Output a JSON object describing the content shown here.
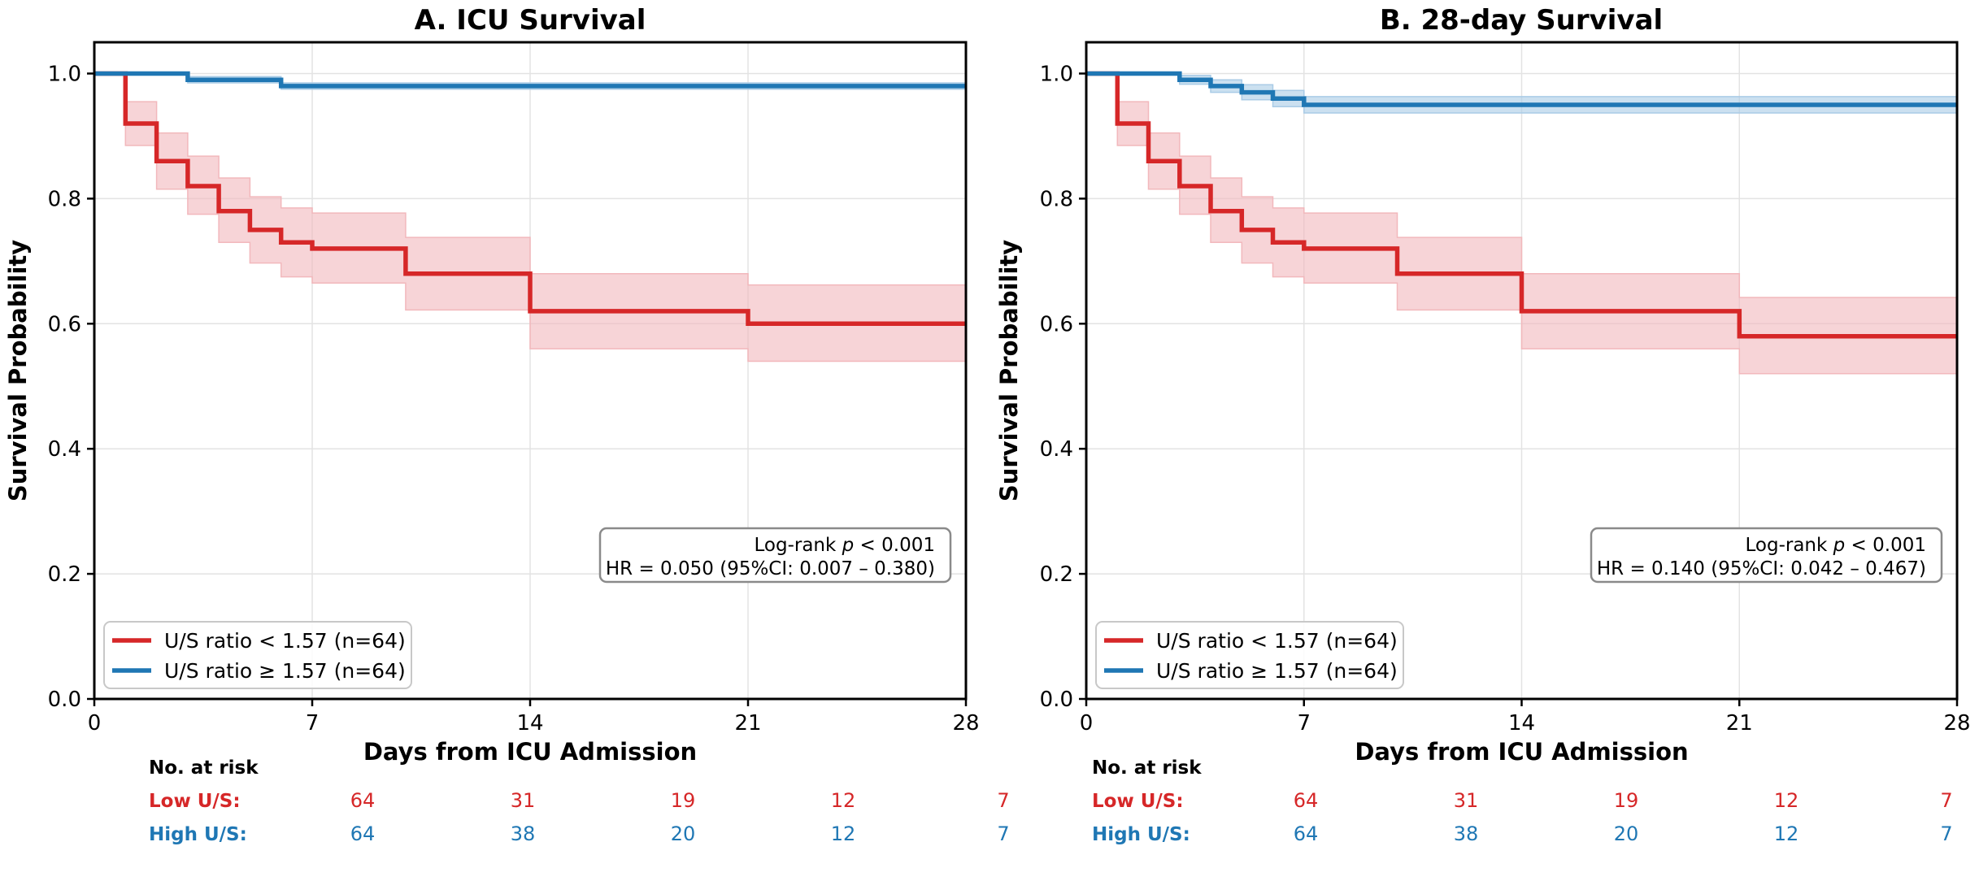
{
  "colors": {
    "low": "#d62728",
    "high": "#1f77b4",
    "low_ci": "#f2b8bc",
    "high_ci": "#a9cbe6",
    "grid": "#e3e3e3",
    "axis": "#000000"
  },
  "chart_data": [
    {
      "type": "line",
      "subtype": "kaplan-meier",
      "title": "A. ICU Survival",
      "xlabel": "Days from ICU Admission",
      "ylabel": "Survival Probability",
      "xlim": [
        0,
        28
      ],
      "ylim": [
        0,
        1.05
      ],
      "xticks": [
        0,
        7,
        14,
        21,
        28
      ],
      "yticks": [
        0.0,
        0.2,
        0.4,
        0.6,
        0.8,
        1.0
      ],
      "xtick_labels": [
        "0",
        "7",
        "14",
        "21",
        "28"
      ],
      "ytick_labels": [
        "0.0",
        "0.2",
        "0.4",
        "0.6",
        "0.8",
        "1.0"
      ],
      "grid": true,
      "legend_position": "bottom-left",
      "annotation": {
        "line1_prefix": "Log-rank ",
        "line1_p": "p",
        "line1_suffix": " < 0.001",
        "line2": "HR = 0.050 (95%CI: 0.007 – 0.380)"
      },
      "series": [
        {
          "name": "U/S ratio < 1.57 (n=64)",
          "key": "low",
          "x": [
            0,
            1,
            2,
            3,
            4,
            5,
            6,
            7,
            10,
            14,
            21,
            28
          ],
          "y": [
            1.0,
            0.92,
            0.86,
            0.82,
            0.78,
            0.75,
            0.73,
            0.72,
            0.68,
            0.62,
            0.6,
            0.6
          ],
          "ci_lower": [
            1.0,
            0.885,
            0.815,
            0.775,
            0.73,
            0.697,
            0.675,
            0.665,
            0.622,
            0.56,
            0.54,
            0.54
          ],
          "ci_upper": [
            1.0,
            0.955,
            0.905,
            0.868,
            0.833,
            0.803,
            0.785,
            0.777,
            0.738,
            0.68,
            0.662,
            0.662
          ]
        },
        {
          "name": "U/S ratio ≥ 1.57 (n=64)",
          "key": "high",
          "x": [
            0,
            3,
            6,
            28
          ],
          "y": [
            1.0,
            0.99,
            0.98,
            0.98
          ],
          "ci_lower": [
            1.0,
            0.985,
            0.975,
            0.975
          ],
          "ci_upper": [
            1.0,
            0.995,
            0.985,
            0.985
          ]
        }
      ],
      "risk_table": {
        "header": "No. at risk",
        "rows": [
          {
            "label": "Low U/S:",
            "key": "low",
            "values": [
              "64",
              "31",
              "19",
              "12",
              "7"
            ]
          },
          {
            "label": "High U/S:",
            "key": "high",
            "values": [
              "64",
              "38",
              "20",
              "12",
              "7"
            ]
          }
        ]
      }
    },
    {
      "type": "line",
      "subtype": "kaplan-meier",
      "title": "B. 28-day Survival",
      "xlabel": "Days from ICU Admission",
      "ylabel": "Survival Probability",
      "xlim": [
        0,
        28
      ],
      "ylim": [
        0,
        1.05
      ],
      "xticks": [
        0,
        7,
        14,
        21,
        28
      ],
      "yticks": [
        0.0,
        0.2,
        0.4,
        0.6,
        0.8,
        1.0
      ],
      "xtick_labels": [
        "0",
        "7",
        "14",
        "21",
        "28"
      ],
      "ytick_labels": [
        "0.0",
        "0.2",
        "0.4",
        "0.6",
        "0.8",
        "1.0"
      ],
      "grid": true,
      "legend_position": "bottom-left",
      "annotation": {
        "line1_prefix": "Log-rank ",
        "line1_p": "p",
        "line1_suffix": " < 0.001",
        "line2": "HR = 0.140 (95%CI: 0.042 – 0.467)"
      },
      "series": [
        {
          "name": "U/S ratio < 1.57 (n=64)",
          "key": "low",
          "x": [
            0,
            1,
            2,
            3,
            4,
            5,
            6,
            7,
            10,
            14,
            21,
            28
          ],
          "y": [
            1.0,
            0.92,
            0.86,
            0.82,
            0.78,
            0.75,
            0.73,
            0.72,
            0.68,
            0.62,
            0.58,
            0.58
          ],
          "ci_lower": [
            1.0,
            0.885,
            0.815,
            0.775,
            0.73,
            0.697,
            0.675,
            0.665,
            0.622,
            0.56,
            0.52,
            0.52
          ],
          "ci_upper": [
            1.0,
            0.955,
            0.905,
            0.868,
            0.833,
            0.803,
            0.785,
            0.777,
            0.738,
            0.68,
            0.642,
            0.642
          ]
        },
        {
          "name": "U/S ratio ≥ 1.57 (n=64)",
          "key": "high",
          "x": [
            0,
            3,
            4,
            5,
            6,
            7,
            28
          ],
          "y": [
            1.0,
            0.99,
            0.98,
            0.97,
            0.96,
            0.95,
            0.95
          ],
          "ci_lower": [
            1.0,
            0.983,
            0.97,
            0.958,
            0.947,
            0.937,
            0.937
          ],
          "ci_upper": [
            1.0,
            0.997,
            0.99,
            0.982,
            0.973,
            0.963,
            0.963
          ]
        }
      ],
      "risk_table": {
        "header": "No. at risk",
        "rows": [
          {
            "label": "Low U/S:",
            "key": "low",
            "values": [
              "64",
              "31",
              "19",
              "12",
              "7"
            ]
          },
          {
            "label": "High U/S:",
            "key": "high",
            "values": [
              "64",
              "38",
              "20",
              "12",
              "7"
            ]
          }
        ]
      }
    }
  ]
}
